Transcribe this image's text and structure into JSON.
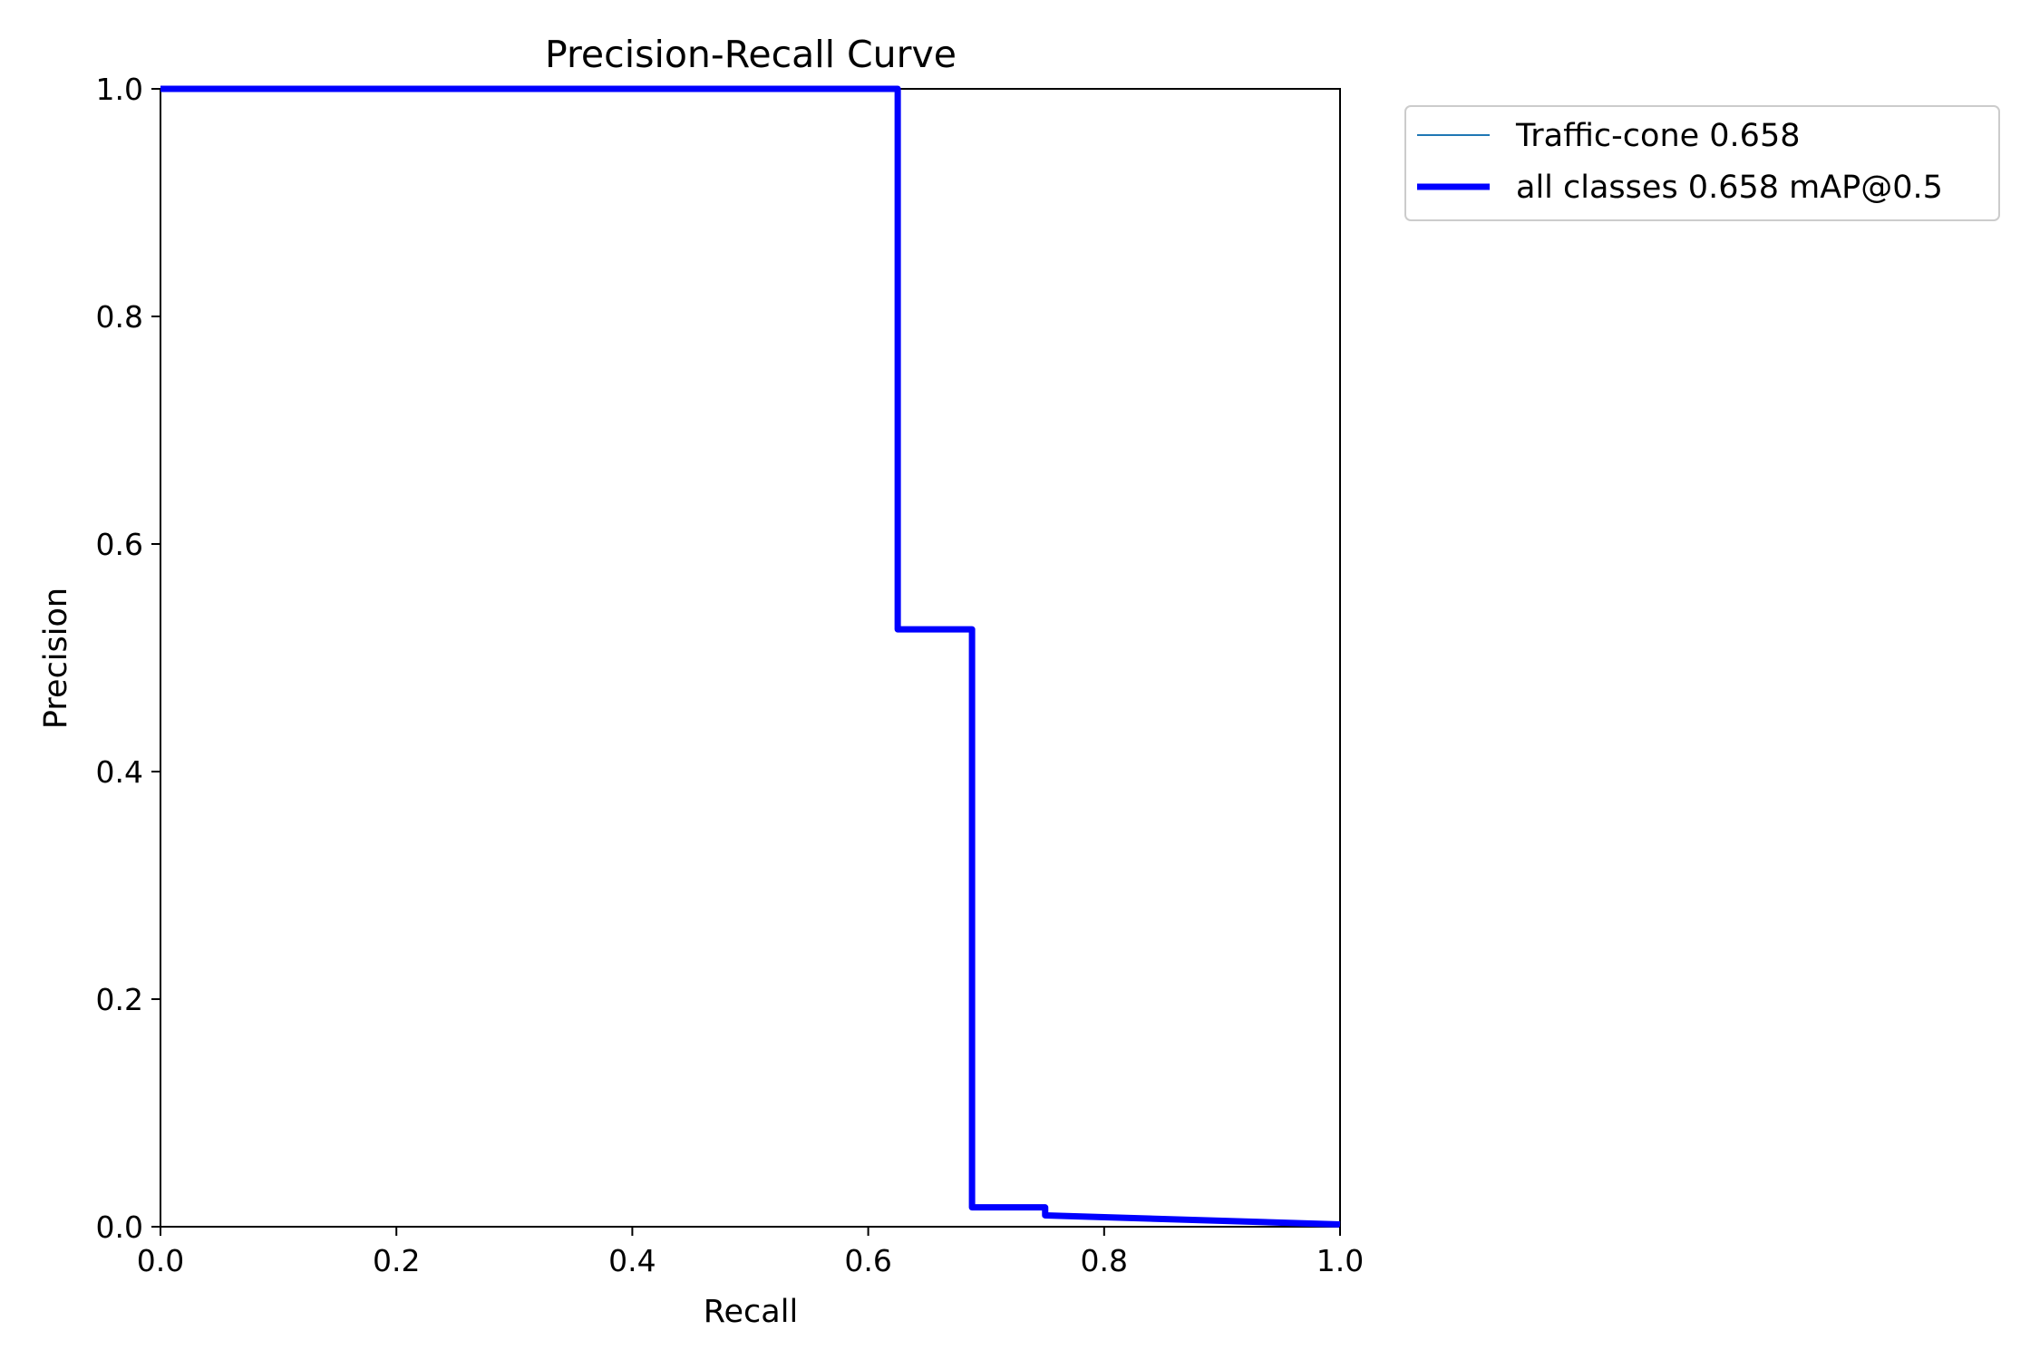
{
  "chart_data": {
    "type": "line",
    "title": "Precision-Recall Curve",
    "xlabel": "Recall",
    "ylabel": "Precision",
    "xlim": [
      0,
      1
    ],
    "ylim": [
      0,
      1
    ],
    "x_ticks": [
      "0.0",
      "0.2",
      "0.4",
      "0.6",
      "0.8",
      "1.0"
    ],
    "y_ticks": [
      "0.0",
      "0.2",
      "0.4",
      "0.6",
      "0.8",
      "1.0"
    ],
    "grid": false,
    "legend_position": "outside-upper-right",
    "series": [
      {
        "name": "Traffic-cone 0.658",
        "color": "#1f77b4",
        "line": "thin",
        "x": [
          0.0,
          0.625,
          0.625,
          0.688,
          0.688,
          0.75,
          0.75,
          1.0
        ],
        "y": [
          1.0,
          1.0,
          0.525,
          0.525,
          0.017,
          0.017,
          0.01,
          0.002
        ]
      },
      {
        "name": "all classes 0.658 mAP@0.5",
        "color": "#0000ff",
        "line": "thick",
        "x": [
          0.0,
          0.625,
          0.625,
          0.688,
          0.688,
          0.75,
          0.75,
          1.0
        ],
        "y": [
          1.0,
          1.0,
          0.525,
          0.525,
          0.017,
          0.017,
          0.01,
          0.002
        ]
      }
    ]
  }
}
